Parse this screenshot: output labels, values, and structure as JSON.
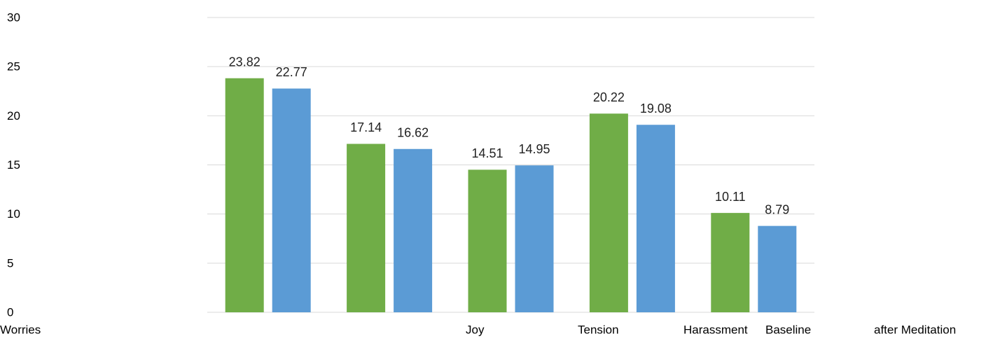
{
  "chart_data": {
    "type": "bar",
    "categories": [
      "Worries",
      null,
      "Joy",
      "Tension",
      "Harassment"
    ],
    "series": [
      {
        "name": "Baseline",
        "color": "#70ad47",
        "values": [
          23.82,
          17.14,
          14.51,
          20.22,
          10.11
        ]
      },
      {
        "name": "after Meditation",
        "color": "#5b9bd5",
        "values": [
          22.77,
          16.62,
          14.95,
          19.08,
          8.79
        ]
      }
    ],
    "ylim": [
      0,
      30
    ],
    "yticks": [
      0,
      5,
      10,
      15,
      20,
      25,
      30
    ],
    "grid": true
  }
}
